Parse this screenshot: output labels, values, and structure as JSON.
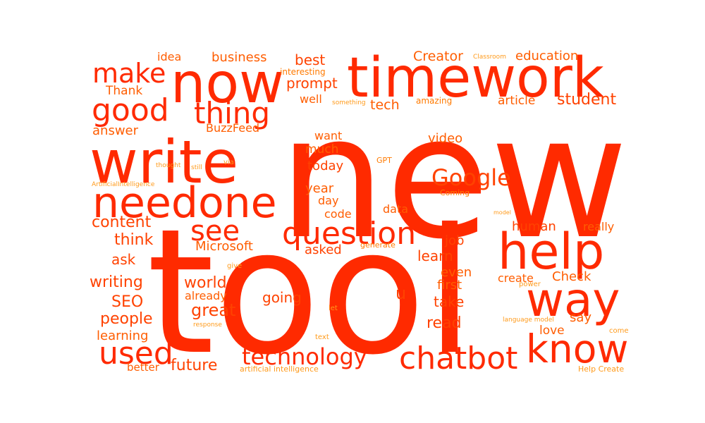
{
  "colors": {
    "background": "#ffffff",
    "primary": "#ff2a00",
    "secondary": "#ff4200",
    "tertiary": "#ff5d00",
    "light": "#ff7a00",
    "faint": "#ff9a1a"
  },
  "words": [
    {
      "id": "new",
      "text": "new"
    },
    {
      "id": "tool",
      "text": "tool"
    },
    {
      "id": "timework",
      "text": "timework"
    },
    {
      "id": "now",
      "text": "now"
    },
    {
      "id": "write",
      "text": "write"
    },
    {
      "id": "needone",
      "text": "needone"
    },
    {
      "id": "help",
      "text": "help"
    },
    {
      "id": "way",
      "text": "way"
    },
    {
      "id": "know",
      "text": "know"
    },
    {
      "id": "chatbot",
      "text": "chatbot"
    },
    {
      "id": "technology",
      "text": "technology"
    },
    {
      "id": "question",
      "text": "question"
    },
    {
      "id": "thing",
      "text": "thing"
    },
    {
      "id": "good",
      "text": "good"
    },
    {
      "id": "make",
      "text": "make"
    },
    {
      "id": "google",
      "text": "Google"
    },
    {
      "id": "see",
      "text": "see"
    },
    {
      "id": "used",
      "text": "used"
    },
    {
      "id": "future",
      "text": "future"
    },
    {
      "id": "content",
      "text": "content"
    },
    {
      "id": "think",
      "text": "think"
    },
    {
      "id": "ask",
      "text": "ask"
    },
    {
      "id": "writing",
      "text": "writing"
    },
    {
      "id": "seo",
      "text": "SEO"
    },
    {
      "id": "people",
      "text": "people"
    },
    {
      "id": "learning",
      "text": "learning"
    },
    {
      "id": "better",
      "text": "better"
    },
    {
      "id": "answer",
      "text": "answer"
    },
    {
      "id": "thank",
      "text": "Thank"
    },
    {
      "id": "idea",
      "text": "idea"
    },
    {
      "id": "business",
      "text": "business"
    },
    {
      "id": "best",
      "text": "best"
    },
    {
      "id": "creator",
      "text": "Creator"
    },
    {
      "id": "classroom",
      "text": "Classroom"
    },
    {
      "id": "education",
      "text": "education"
    },
    {
      "id": "interesting",
      "text": "interesting"
    },
    {
      "id": "prompt",
      "text": "prompt"
    },
    {
      "id": "well",
      "text": "well"
    },
    {
      "id": "something",
      "text": "something"
    },
    {
      "id": "tech",
      "text": "tech"
    },
    {
      "id": "amazing",
      "text": "amazing"
    },
    {
      "id": "article",
      "text": "article"
    },
    {
      "id": "student",
      "text": "student"
    },
    {
      "id": "buzzfeed",
      "text": "BuzzFeed"
    },
    {
      "id": "want",
      "text": "want"
    },
    {
      "id": "much",
      "text": "much"
    },
    {
      "id": "video",
      "text": "video"
    },
    {
      "id": "today",
      "text": "today"
    },
    {
      "id": "gpt",
      "text": "GPT"
    },
    {
      "id": "thought",
      "text": "thought"
    },
    {
      "id": "still",
      "text": "still"
    },
    {
      "id": "via",
      "text": "via"
    },
    {
      "id": "ai",
      "text": "ArtificialIntelligence"
    },
    {
      "id": "year",
      "text": "year"
    },
    {
      "id": "day",
      "text": "day"
    },
    {
      "id": "coming",
      "text": "Coming"
    },
    {
      "id": "code",
      "text": "code"
    },
    {
      "id": "data",
      "text": "data"
    },
    {
      "id": "model",
      "text": "model"
    },
    {
      "id": "human",
      "text": "human"
    },
    {
      "id": "really",
      "text": "really"
    },
    {
      "id": "microsoft",
      "text": "Microsoft"
    },
    {
      "id": "asked",
      "text": "asked"
    },
    {
      "id": "generate",
      "text": "generate"
    },
    {
      "id": "job",
      "text": "job"
    },
    {
      "id": "learn",
      "text": "learn"
    },
    {
      "id": "even",
      "text": "even"
    },
    {
      "id": "create",
      "text": "create"
    },
    {
      "id": "check",
      "text": "Check"
    },
    {
      "id": "give",
      "text": "give"
    },
    {
      "id": "world",
      "text": "world"
    },
    {
      "id": "already",
      "text": "already"
    },
    {
      "id": "going",
      "text": "going"
    },
    {
      "id": "u",
      "text": "u"
    },
    {
      "id": "first",
      "text": "first"
    },
    {
      "id": "power",
      "text": "power"
    },
    {
      "id": "great",
      "text": "great"
    },
    {
      "id": "take",
      "text": "take"
    },
    {
      "id": "let",
      "text": "let"
    },
    {
      "id": "say",
      "text": "say"
    },
    {
      "id": "response",
      "text": "response"
    },
    {
      "id": "read",
      "text": "read"
    },
    {
      "id": "languagemodel",
      "text": "language model"
    },
    {
      "id": "love",
      "text": "love"
    },
    {
      "id": "come",
      "text": "come"
    },
    {
      "id": "text",
      "text": "text"
    },
    {
      "id": "artificialintelligence",
      "text": "artificial intelligence"
    },
    {
      "id": "helpcreate",
      "text": "Help Create"
    }
  ]
}
